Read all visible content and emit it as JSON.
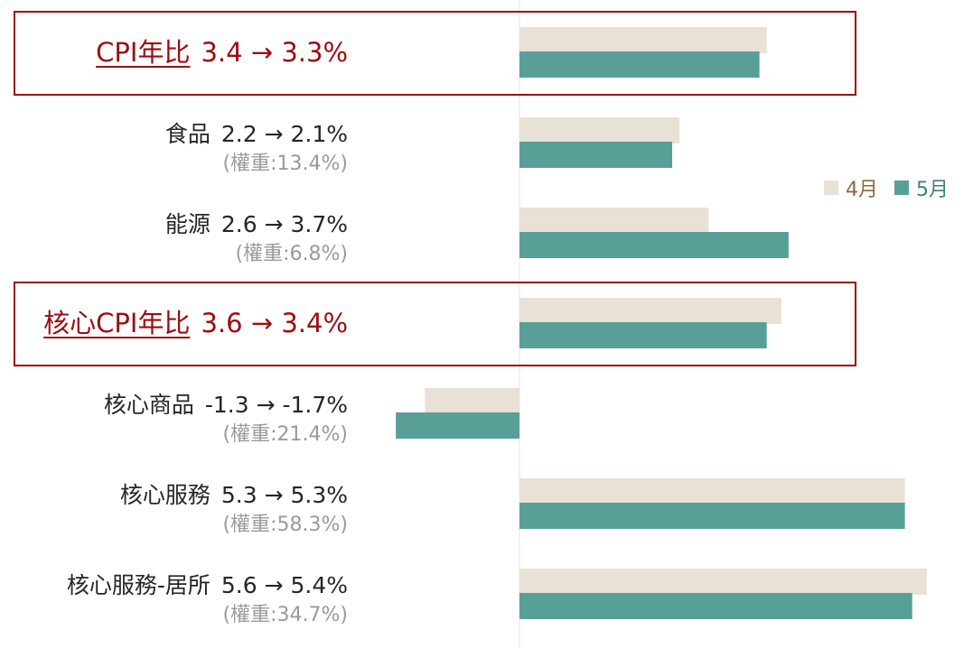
{
  "chart_data": {
    "type": "bar",
    "orientation": "horizontal",
    "grid": false,
    "legend_position": "right",
    "colors": {
      "apr": "#e8e1d6",
      "may": "#589f98",
      "highlight": "#9b0d12",
      "apr_text": "#8a6a3e",
      "may_text": "#3f7f79"
    },
    "series": [
      {
        "name": "4月",
        "values": [
          3.4,
          2.2,
          2.6,
          3.6,
          -1.3,
          5.3,
          5.6
        ]
      },
      {
        "name": "5月",
        "values": [
          3.3,
          2.1,
          3.7,
          3.4,
          -1.7,
          5.3,
          5.4
        ]
      }
    ],
    "categories": [
      {
        "name": "CPI年比",
        "change": "3.4 → 3.3%",
        "weight": "",
        "highlight": true
      },
      {
        "name": "食品",
        "change": "2.2 → 2.1%",
        "weight": "(權重:13.4%)",
        "highlight": false
      },
      {
        "name": "能源",
        "change": "2.6 → 3.7%",
        "weight": "(權重:6.8%)",
        "highlight": false
      },
      {
        "name": "核心CPI年比",
        "change": "3.6 → 3.4%",
        "weight": "",
        "highlight": true
      },
      {
        "name": "核心商品",
        "change": "-1.3 → -1.7%",
        "weight": "(權重:21.4%)",
        "highlight": false
      },
      {
        "name": "核心服務",
        "change": "5.3 → 5.3%",
        "weight": "(權重:58.3%)",
        "highlight": false
      },
      {
        "name": "核心服務-居所",
        "change": "5.6 → 5.4%",
        "weight": "(權重:34.7%)",
        "highlight": false
      }
    ],
    "xlim": [
      -1.8,
      5.6
    ]
  }
}
